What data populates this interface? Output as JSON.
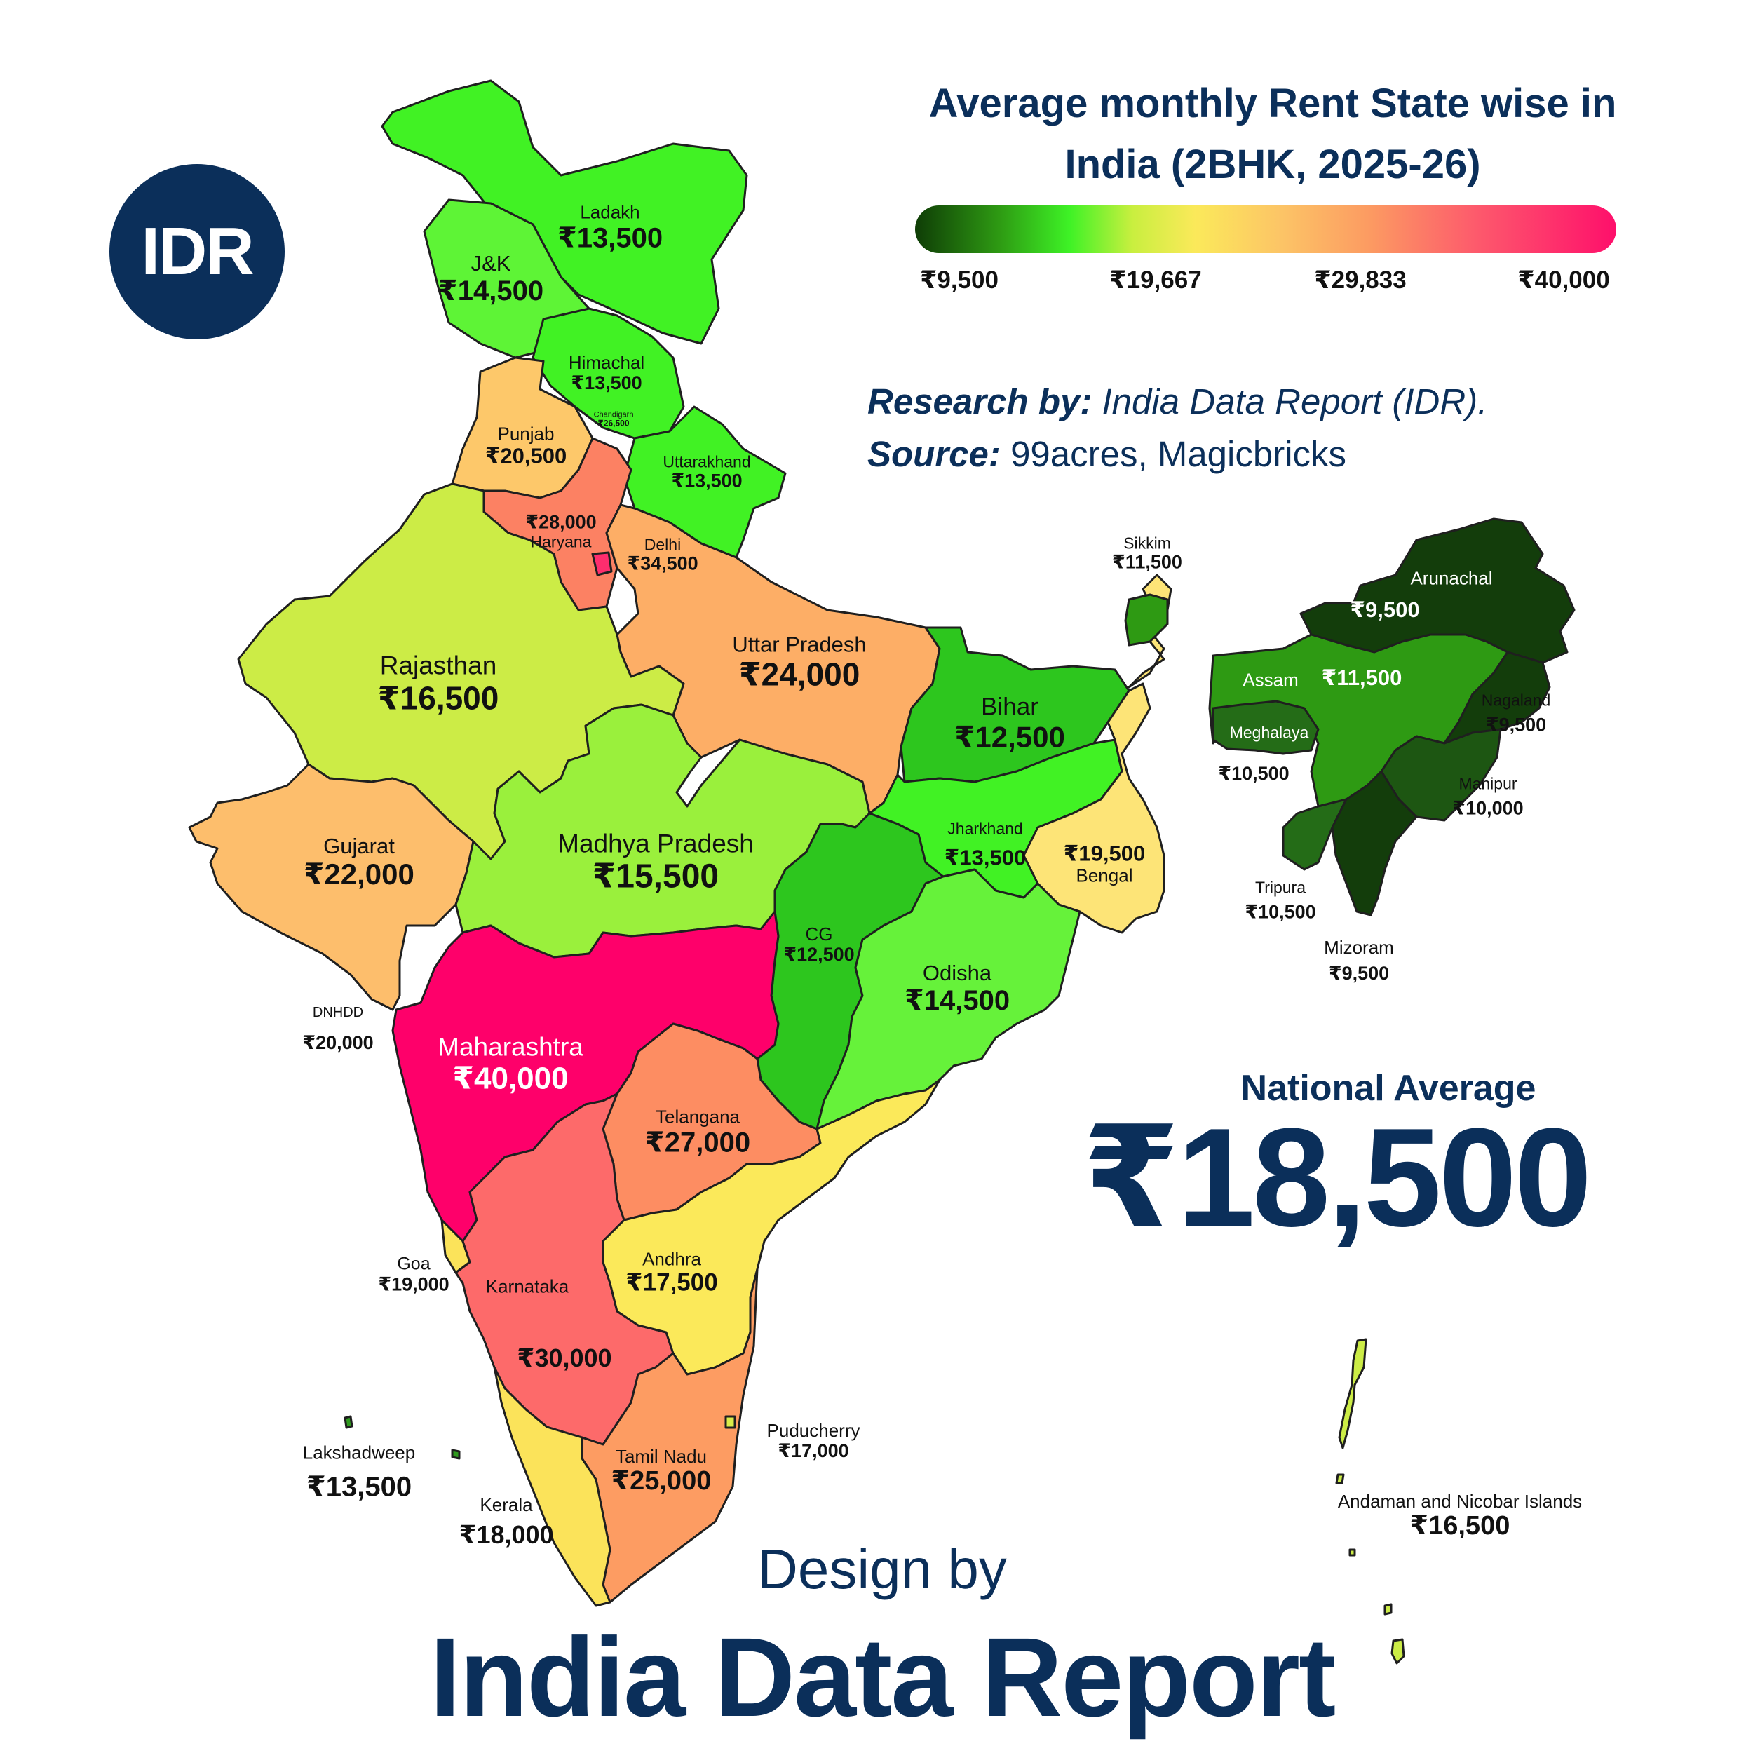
{
  "logo": {
    "text": "IDR"
  },
  "title": {
    "line1": "Average monthly Rent State wise in",
    "line2": "India (2BHK, 2025-26)"
  },
  "legend": {
    "ticks": [
      "₹9,500",
      "₹19,667",
      "₹29,833",
      "₹40,000"
    ],
    "min_value": 9500,
    "max_value": 40000,
    "colors": [
      "#0f3d06",
      "#3ef226",
      "#fbe95a",
      "#fc9a62",
      "#fe0f6b"
    ]
  },
  "credits": {
    "research_label": "Research by:",
    "research_value": "India Data Report (IDR).",
    "source_label": "Source:",
    "source_value": "99acres, Magicbricks"
  },
  "national": {
    "label": "National Average",
    "value": "₹18,500",
    "numeric": 18500
  },
  "footer": {
    "design_by": "Design by",
    "brand": "India Data Report"
  },
  "regions": {
    "ladakh": {
      "name": "Ladakh",
      "value": "₹13,500",
      "numeric": 13500,
      "color": "#41f224"
    },
    "jk": {
      "name": "J&K",
      "value": "₹14,500",
      "numeric": 14500,
      "color": "#5ef436"
    },
    "himachal": {
      "name": "Himachal",
      "value": "₹13,500",
      "numeric": 13500,
      "color": "#41f224"
    },
    "chandigarh": {
      "name": "Chandigarh",
      "value": "₹26,500",
      "numeric": 26500,
      "color": "#fda664"
    },
    "punjab": {
      "name": "Punjab",
      "value": "₹20,500",
      "numeric": 20500,
      "color": "#fdc86a"
    },
    "uttarakhand": {
      "name": "Uttarakhand",
      "value": "₹13,500",
      "numeric": 13500,
      "color": "#41f224"
    },
    "haryana": {
      "name": "Haryana",
      "value": "₹28,000",
      "numeric": 28000,
      "color": "#fc8163"
    },
    "delhi": {
      "name": "Delhi",
      "value": "₹34,500",
      "numeric": 34500,
      "color": "#fd2d6e"
    },
    "rajasthan": {
      "name": "Rajasthan",
      "value": "₹16,500",
      "numeric": 16500,
      "color": "#ccec46"
    },
    "uttar_pradesh": {
      "name": "Uttar Pradesh",
      "value": "₹24,000",
      "numeric": 24000,
      "color": "#fdae66"
    },
    "bihar": {
      "name": "Bihar",
      "value": "₹12,500",
      "numeric": 12500,
      "color": "#2dc61e"
    },
    "gujarat": {
      "name": "Gujarat",
      "value": "₹22,000",
      "numeric": 22000,
      "color": "#fdbe6c"
    },
    "madhya_pradesh": {
      "name": "Madhya Pradesh",
      "value": "₹15,500",
      "numeric": 15500,
      "color": "#9af03c"
    },
    "jharkhand": {
      "name": "Jharkhand",
      "value": "₹13,500",
      "numeric": 13500,
      "color": "#41f224"
    },
    "bengal": {
      "name": "Bengal",
      "value": "₹19,500",
      "numeric": 19500,
      "color": "#fde477"
    },
    "cg": {
      "name": "CG",
      "value": "₹12,500",
      "numeric": 12500,
      "color": "#2dc61e"
    },
    "odisha": {
      "name": "Odisha",
      "value": "₹14,500",
      "numeric": 14500,
      "color": "#66f23a"
    },
    "dnhdd": {
      "name": "DNHDD",
      "value": "₹20,000",
      "numeric": 20000,
      "color": "#fdc86a"
    },
    "maharashtra": {
      "name": "Maharashtra",
      "value": "₹40,000",
      "numeric": 40000,
      "color": "#fe006a"
    },
    "telangana": {
      "name": "Telangana",
      "value": "₹27,000",
      "numeric": 27000,
      "color": "#fd8d62"
    },
    "goa": {
      "name": "Goa",
      "value": "₹19,000",
      "numeric": 19000,
      "color": "#fbe35a"
    },
    "karnataka": {
      "name": "Karnataka",
      "value": "₹30,000",
      "numeric": 30000,
      "color": "#fd6a6a"
    },
    "andhra": {
      "name": "Andhra",
      "value": "₹17,500",
      "numeric": 17500,
      "color": "#fbe95a"
    },
    "tamil_nadu": {
      "name": "Tamil Nadu",
      "value": "₹25,000",
      "numeric": 25000,
      "color": "#fd9c62"
    },
    "kerala": {
      "name": "Kerala",
      "value": "₹18,000",
      "numeric": 18000,
      "color": "#fbe35a"
    },
    "puducherry": {
      "name": "Puducherry",
      "value": "₹17,000",
      "numeric": 17000,
      "color": "#d8ec4a"
    },
    "lakshadweep": {
      "name": "Lakshadweep",
      "value": "₹13,500",
      "numeric": 13500,
      "color": "#2f9a1e"
    },
    "sikkim": {
      "name": "Sikkim",
      "value": "₹11,500",
      "numeric": 11500,
      "color": "#2e9a13"
    },
    "arunachal": {
      "name": "Arunachal",
      "value": "₹9,500",
      "numeric": 9500,
      "color": "#133d0b"
    },
    "assam": {
      "name": "Assam",
      "value": "₹11,500",
      "numeric": 11500,
      "color": "#2e9a13"
    },
    "meghalaya": {
      "name": "Meghalaya",
      "value": "₹10,500",
      "numeric": 10500,
      "color": "#246c17"
    },
    "nagaland": {
      "name": "Nagaland",
      "value": "₹9,500",
      "numeric": 9500,
      "color": "#133d0b"
    },
    "manipur": {
      "name": "Manipur",
      "value": "₹10,000",
      "numeric": 10000,
      "color": "#1d5612"
    },
    "tripura": {
      "name": "Tripura",
      "value": "₹10,500",
      "numeric": 10500,
      "color": "#246c17"
    },
    "mizoram": {
      "name": "Mizoram",
      "value": "₹9,500",
      "numeric": 9500,
      "color": "#133d0b"
    },
    "andaman": {
      "name": "Andaman and Nicobar Islands",
      "value": "₹16,500",
      "numeric": 16500,
      "color": "#ccec46"
    }
  }
}
